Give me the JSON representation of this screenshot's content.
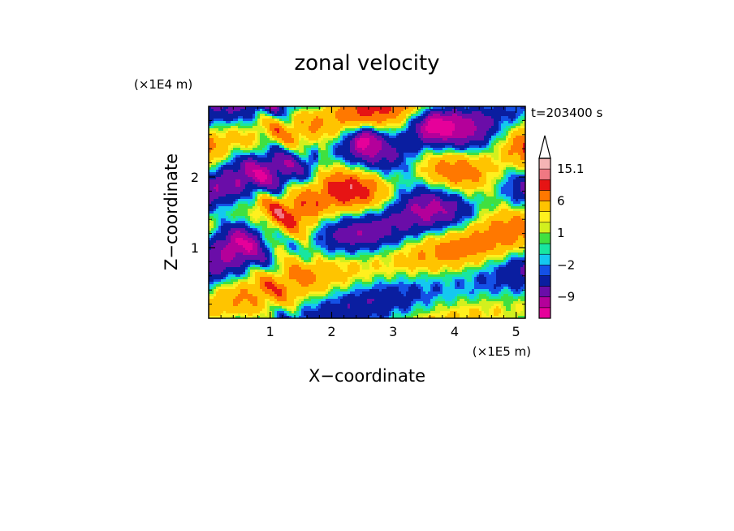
{
  "chart_data": {
    "type": "heatmap",
    "title": "zonal velocity",
    "xlabel": "X−coordinate",
    "ylabel": "Z−coordinate",
    "x_scale_label": "(×1E5 m)",
    "y_scale_label": "(×1E4 m)",
    "time_label": "t=203400 s",
    "xlim": [
      0,
      5.15
    ],
    "ylim": [
      0,
      3.0
    ],
    "x_ticks": [
      1,
      2,
      3,
      4,
      5
    ],
    "x_tick_labels": [
      "1",
      "2",
      "3",
      "4",
      "5"
    ],
    "y_ticks": [
      1,
      2
    ],
    "y_tick_labels": [
      "1",
      "2"
    ],
    "colorbar": {
      "levels": [
        -15,
        -12,
        -9,
        -6,
        -3,
        -2,
        -1,
        0,
        1,
        2,
        3,
        6,
        9,
        12,
        15.1
      ],
      "colors": [
        "#e6009a",
        "#b4009a",
        "#6a0da8",
        "#0a1ea0",
        "#1450e6",
        "#14c8f0",
        "#18e6a0",
        "#40e040",
        "#d2f01e",
        "#fff01e",
        "#ffc400",
        "#ff7800",
        "#e61414",
        "#f07882",
        "#f5b4b4"
      ],
      "labels": [
        {
          "value": 15.1,
          "text": "15.1"
        },
        {
          "value": 6,
          "text": "6"
        },
        {
          "value": 1,
          "text": "1"
        },
        {
          "value": -2,
          "text": "−2"
        },
        {
          "value": -9,
          "text": "−9"
        }
      ],
      "extend": "max"
    }
  }
}
